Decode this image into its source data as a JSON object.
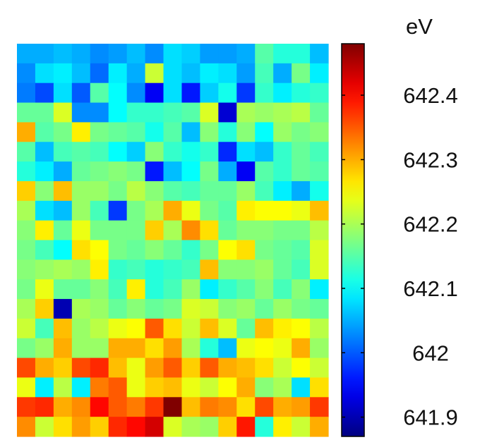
{
  "chart_data": {
    "type": "heatmap",
    "title": "",
    "xlabel": "",
    "ylabel": "",
    "colorbar": {
      "unit": "eV",
      "range": [
        641.87,
        642.48
      ],
      "ticks": [
        641.9,
        642,
        642.1,
        642.2,
        642.3,
        642.4
      ],
      "tick_labels": [
        "641.9",
        "642",
        "642.1",
        "642.2",
        "642.3",
        "642.4"
      ],
      "colormap": "jet"
    },
    "rows": 20,
    "cols": 17,
    "values": [
      [
        642.05,
        642.05,
        642.06,
        642.05,
        642.03,
        642.04,
        642.06,
        642.03,
        642.08,
        642.07,
        642.04,
        642.04,
        642.05,
        642.15,
        642.12,
        642.12,
        642.06
      ],
      [
        642.03,
        642.08,
        642.09,
        642.06,
        642.01,
        642.09,
        642.05,
        642.22,
        642.08,
        642.06,
        642.09,
        642.08,
        642.04,
        642.14,
        642.05,
        642.17,
        642.09
      ],
      [
        642.02,
        641.99,
        642.08,
        642.0,
        642.15,
        642.1,
        642.03,
        641.94,
        642.08,
        641.96,
        642.07,
        642.11,
        641.98,
        642.13,
        642.09,
        642.12,
        642.13
      ],
      [
        642.16,
        642.16,
        642.23,
        642.03,
        642.03,
        642.1,
        642.13,
        642.13,
        642.14,
        642.15,
        642.23,
        641.92,
        642.2,
        642.19,
        642.2,
        642.21,
        642.16
      ],
      [
        642.3,
        642.15,
        642.17,
        642.26,
        642.17,
        642.16,
        642.15,
        642.11,
        642.15,
        642.06,
        642.18,
        642.12,
        642.18,
        642.1,
        642.19,
        642.17,
        642.18
      ],
      [
        642.15,
        642.06,
        642.14,
        642.15,
        642.14,
        642.1,
        642.07,
        642.18,
        642.13,
        642.11,
        642.13,
        641.97,
        642.08,
        642.06,
        642.13,
        642.16,
        642.14
      ],
      [
        642.12,
        642.09,
        642.05,
        642.16,
        642.17,
        642.18,
        642.17,
        641.96,
        642.06,
        642.1,
        642.17,
        642.05,
        641.94,
        642.15,
        642.13,
        642.16,
        642.15
      ],
      [
        642.28,
        642.18,
        642.29,
        642.19,
        642.19,
        642.17,
        642.21,
        642.18,
        642.15,
        642.14,
        642.16,
        642.16,
        642.19,
        642.14,
        642.09,
        642.05,
        642.11
      ],
      [
        642.2,
        642.08,
        642.06,
        642.19,
        642.14,
        641.98,
        642.17,
        642.2,
        642.3,
        642.24,
        642.17,
        642.15,
        642.26,
        642.25,
        642.25,
        642.24,
        642.29
      ],
      [
        642.18,
        642.26,
        642.16,
        642.24,
        642.17,
        642.17,
        642.17,
        642.28,
        642.2,
        642.32,
        642.27,
        642.16,
        642.18,
        642.18,
        642.17,
        642.17,
        642.21
      ],
      [
        642.17,
        642.14,
        642.1,
        642.27,
        642.25,
        642.17,
        642.16,
        642.18,
        642.16,
        642.13,
        642.17,
        642.25,
        642.27,
        642.17,
        642.16,
        642.15,
        642.23
      ],
      [
        642.18,
        642.19,
        642.2,
        642.19,
        642.26,
        642.13,
        642.14,
        642.12,
        642.13,
        642.14,
        642.29,
        642.18,
        642.18,
        642.19,
        642.16,
        642.14,
        642.23
      ],
      [
        642.17,
        642.24,
        642.16,
        642.16,
        642.18,
        642.14,
        642.26,
        642.12,
        642.14,
        642.19,
        642.09,
        642.13,
        642.15,
        642.18,
        642.14,
        642.18,
        642.09
      ],
      [
        642.2,
        642.28,
        641.9,
        642.2,
        642.19,
        642.16,
        642.18,
        642.16,
        642.17,
        642.23,
        642.22,
        642.18,
        642.19,
        642.16,
        642.19,
        642.17,
        642.16
      ],
      [
        642.22,
        642.14,
        642.29,
        642.19,
        642.21,
        642.24,
        642.25,
        642.35,
        642.27,
        642.22,
        642.29,
        642.23,
        642.16,
        642.29,
        642.26,
        642.25,
        642.21
      ],
      [
        642.17,
        642.19,
        642.3,
        642.19,
        642.19,
        642.3,
        642.3,
        642.27,
        642.31,
        642.2,
        642.12,
        642.06,
        642.24,
        642.25,
        642.24,
        642.3,
        642.19
      ],
      [
        642.36,
        642.3,
        642.28,
        642.36,
        642.38,
        642.29,
        642.24,
        642.31,
        642.35,
        642.28,
        642.35,
        642.3,
        642.29,
        642.27,
        642.22,
        642.25,
        642.22
      ],
      [
        642.24,
        642.09,
        642.21,
        642.09,
        642.33,
        642.35,
        642.24,
        642.28,
        642.29,
        642.24,
        642.22,
        642.25,
        642.3,
        642.18,
        642.2,
        642.08,
        642.27
      ],
      [
        642.37,
        642.38,
        642.3,
        642.32,
        642.4,
        642.35,
        642.33,
        642.37,
        642.48,
        642.29,
        642.33,
        642.32,
        642.27,
        642.36,
        642.3,
        642.31,
        642.37
      ],
      [
        642.32,
        642.22,
        642.27,
        642.31,
        642.28,
        642.38,
        642.4,
        642.43,
        642.23,
        642.2,
        642.19,
        642.28,
        642.39,
        642.12,
        642.26,
        642.22,
        642.3
      ]
    ]
  }
}
